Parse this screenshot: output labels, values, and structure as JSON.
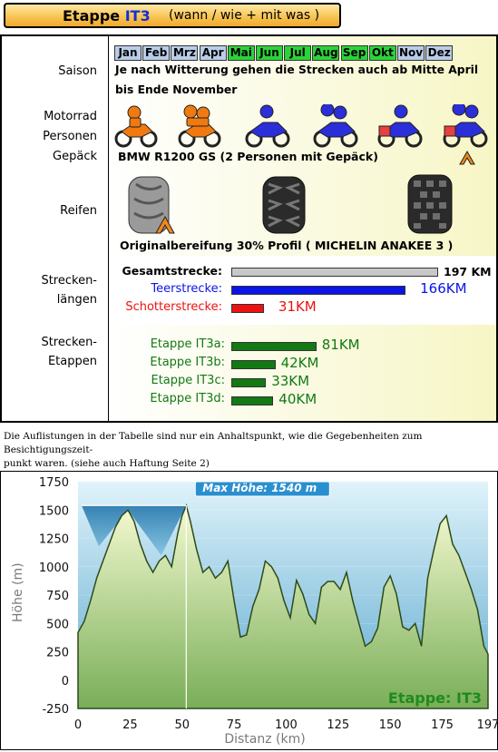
{
  "header": {
    "prefix": "Etappe",
    "code": "IT3",
    "suffix": "(wann / wie + mit was )"
  },
  "saison": {
    "label": "Saison",
    "months": [
      {
        "name": "Jan",
        "active": false
      },
      {
        "name": "Feb",
        "active": false
      },
      {
        "name": "Mrz",
        "active": false
      },
      {
        "name": "Apr",
        "active": false
      },
      {
        "name": "Mai",
        "active": true
      },
      {
        "name": "Jun",
        "active": true
      },
      {
        "name": "Jul",
        "active": true
      },
      {
        "name": "Aug",
        "active": true
      },
      {
        "name": "Sep",
        "active": true
      },
      {
        "name": "Okt",
        "active": true
      },
      {
        "name": "Nov",
        "active": false
      },
      {
        "name": "Dez",
        "active": false
      }
    ],
    "text_line1": "Je nach Witterung gehen die Strecken auch ab Mitte April",
    "text_line2": "bis Ende November"
  },
  "motorrad": {
    "label_line1": "Motorrad",
    "label_line2": "Personen",
    "label_line3": "Gepäck",
    "caption": "BMW R1200 GS  (2 Personen mit Gepäck)",
    "icons": [
      "motorcycle-1-rider-orange",
      "motorcycle-2-riders-orange",
      "motorcycle-1-rider-blue",
      "motorcycle-2-riders-blue",
      "motorcycle-1-rider-luggage",
      "motorcycle-2-riders-luggage-selected"
    ]
  },
  "reifen": {
    "label": "Reifen",
    "caption": "Originalbereifung  30% Profil ( MICHELIN ANAKEE 3 )",
    "icons": [
      "tire-road-selected",
      "tire-enduro",
      "tire-knobby"
    ]
  },
  "strecken": {
    "label_line1": "Strecken-",
    "label_line2": "längen",
    "items": [
      {
        "label": "Gesamtstrecke:",
        "value": "197 KM",
        "km": 197,
        "color": "#c8c8c8",
        "label_color": "#000000",
        "value_color": "#000000"
      },
      {
        "label": "Teerstrecke:",
        "value": "166KM",
        "km": 166,
        "color": "#0a14e6",
        "label_color": "#0a14e6",
        "value_color": "#0a14e6"
      },
      {
        "label": "Schotterstrecke:",
        "value": "31KM",
        "km": 31,
        "color": "#ee1111",
        "label_color": "#ee1111",
        "value_color": "#ee1111"
      }
    ]
  },
  "etappen": {
    "label_line1": "Strecken-",
    "label_line2": "Etappen",
    "items": [
      {
        "label": "Etappe IT3a:",
        "value": "81KM",
        "km": 81
      },
      {
        "label": "Etappe IT3b:",
        "value": "42KM",
        "km": 42
      },
      {
        "label": "Etappe IT3c:",
        "value": "33KM",
        "km": 33
      },
      {
        "label": "Etappe IT3d:",
        "value": "40KM",
        "km": 40
      }
    ],
    "color": "#137a13"
  },
  "note": {
    "line1": "Die Auflistungen in der Tabelle sind nur ein Anhaltspunkt, wie die Gegebenheiten zum Besichtigungszeit-",
    "line2": "punkt waren. (siehe auch Haftung Seite 2)"
  },
  "chart_data": {
    "type": "area",
    "xlabel": "Distanz (km)",
    "ylabel": "Höhe (m)",
    "xlim": [
      0,
      197
    ],
    "ylim": [
      -250,
      1750
    ],
    "xticks": [
      0,
      25,
      50,
      75,
      100,
      125,
      150,
      175,
      197
    ],
    "yticks": [
      -250,
      0,
      250,
      500,
      750,
      1000,
      1250,
      1500,
      1750
    ],
    "annotation": "Max Höhe: 1540 m",
    "max_point": {
      "x": 52,
      "y": 1540
    },
    "stage_label": "Etappe: IT3",
    "x": [
      0,
      3,
      6,
      9,
      12,
      15,
      18,
      21,
      24,
      27,
      30,
      33,
      36,
      39,
      42,
      45,
      48,
      50,
      52,
      54,
      57,
      60,
      63,
      66,
      69,
      72,
      75,
      78,
      81,
      84,
      87,
      90,
      93,
      96,
      99,
      102,
      105,
      108,
      111,
      114,
      117,
      120,
      123,
      126,
      129,
      132,
      135,
      138,
      141,
      144,
      147,
      150,
      153,
      156,
      159,
      162,
      165,
      168,
      171,
      174,
      177,
      180,
      183,
      186,
      189,
      192,
      195,
      197
    ],
    "y": [
      420,
      520,
      700,
      900,
      1050,
      1200,
      1350,
      1450,
      1500,
      1400,
      1200,
      1050,
      950,
      1050,
      1100,
      1000,
      1300,
      1450,
      1540,
      1400,
      1150,
      950,
      1000,
      900,
      950,
      1050,
      700,
      380,
      400,
      650,
      800,
      1050,
      1000,
      900,
      700,
      550,
      880,
      760,
      580,
      500,
      820,
      870,
      870,
      800,
      950,
      700,
      500,
      300,
      340,
      460,
      820,
      920,
      760,
      470,
      440,
      500,
      300,
      900,
      1150,
      1380,
      1450,
      1200,
      1100,
      950,
      800,
      620,
      300,
      230
    ],
    "colors": {
      "fill_top": "#f2f7c8",
      "fill_bottom": "#7fb35c",
      "background_top": "#d8f0f8",
      "background_bottom": "#6aaed0",
      "stage_label": "#1f8a1f",
      "annotation_fill": "#2a8fd0"
    }
  }
}
